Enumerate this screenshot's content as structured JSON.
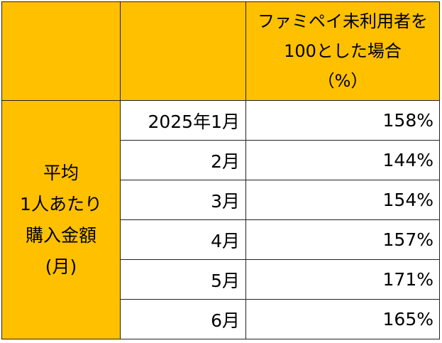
{
  "header": {
    "col3_lines": [
      "ファミペイ未利用者を",
      "100とした場合",
      "（%）"
    ]
  },
  "row_label_lines": [
    "平均",
    "1人あたり",
    "購入金額",
    "(月)"
  ],
  "rows": [
    {
      "month": "2025年1月",
      "value": "158%"
    },
    {
      "month": "2月",
      "value": "144%"
    },
    {
      "month": "3月",
      "value": "154%"
    },
    {
      "month": "4月",
      "value": "157%"
    },
    {
      "month": "5月",
      "value": "171%"
    },
    {
      "month": "6月",
      "value": "165%"
    }
  ],
  "colors": {
    "header_fill": "#FFC000",
    "border": "#222222"
  }
}
